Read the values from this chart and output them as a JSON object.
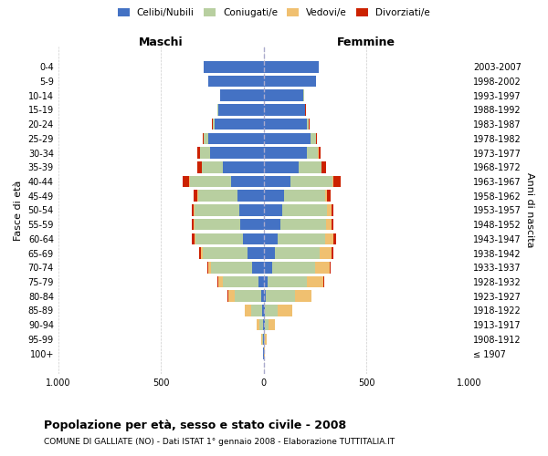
{
  "age_groups": [
    "100+",
    "95-99",
    "90-94",
    "85-89",
    "80-84",
    "75-79",
    "70-74",
    "65-69",
    "60-64",
    "55-59",
    "50-54",
    "45-49",
    "40-44",
    "35-39",
    "30-34",
    "25-29",
    "20-24",
    "15-19",
    "10-14",
    "5-9",
    "0-4"
  ],
  "birth_years": [
    "≤ 1907",
    "1908-1912",
    "1913-1917",
    "1918-1922",
    "1923-1927",
    "1928-1932",
    "1933-1937",
    "1938-1942",
    "1943-1947",
    "1948-1952",
    "1953-1957",
    "1958-1962",
    "1963-1967",
    "1968-1972",
    "1973-1977",
    "1978-1982",
    "1983-1987",
    "1988-1992",
    "1993-1997",
    "1998-2002",
    "2003-2007"
  ],
  "colors": {
    "celibe": "#4472c4",
    "coniugato": "#b8cfa0",
    "vedovo": "#f0c070",
    "divorziato": "#cc2200"
  },
  "males": {
    "celibe": [
      2,
      2,
      4,
      5,
      12,
      25,
      55,
      80,
      100,
      115,
      120,
      125,
      160,
      200,
      260,
      270,
      240,
      220,
      210,
      270,
      290
    ],
    "coniugato": [
      1,
      3,
      15,
      55,
      130,
      175,
      200,
      215,
      230,
      220,
      215,
      195,
      200,
      100,
      50,
      20,
      8,
      3,
      0,
      0,
      0
    ],
    "vedovo": [
      1,
      5,
      15,
      30,
      30,
      20,
      15,
      10,
      8,
      5,
      5,
      4,
      3,
      2,
      1,
      0,
      0,
      0,
      0,
      0,
      0
    ],
    "divorziato": [
      0,
      0,
      0,
      2,
      2,
      5,
      5,
      10,
      10,
      10,
      10,
      15,
      30,
      20,
      10,
      5,
      2,
      1,
      0,
      0,
      0
    ]
  },
  "females": {
    "celibe": [
      2,
      2,
      5,
      8,
      12,
      20,
      40,
      55,
      70,
      80,
      90,
      100,
      130,
      170,
      210,
      230,
      210,
      200,
      195,
      255,
      270
    ],
    "coniugato": [
      1,
      5,
      20,
      60,
      140,
      190,
      210,
      220,
      230,
      225,
      220,
      200,
      205,
      110,
      55,
      25,
      12,
      4,
      1,
      0,
      0
    ],
    "vedovo": [
      3,
      10,
      30,
      70,
      80,
      80,
      70,
      55,
      40,
      25,
      20,
      10,
      5,
      3,
      2,
      1,
      0,
      0,
      0,
      0,
      0
    ],
    "divorziato": [
      0,
      0,
      1,
      2,
      3,
      5,
      8,
      10,
      12,
      12,
      12,
      18,
      35,
      22,
      12,
      5,
      2,
      1,
      0,
      0,
      0
    ]
  },
  "title": "Popolazione per età, sesso e stato civile - 2008",
  "subtitle": "COMUNE DI GALLIATE (NO) - Dati ISTAT 1° gennaio 2008 - Elaborazione TUTTITALIA.IT",
  "xlabel_left": "Maschi",
  "xlabel_right": "Femmine",
  "ylabel_left": "Fasce di età",
  "ylabel_right": "Anni di nascita",
  "xlim": 1000,
  "xticks": [
    -1000,
    -500,
    0,
    500,
    1000
  ],
  "xticklabels": [
    "1.000",
    "500",
    "0",
    "500",
    "1.000"
  ],
  "legend_labels": [
    "Celibi/Nubili",
    "Coniugati/e",
    "Vedovi/e",
    "Divorziati/e"
  ],
  "legend_colors": [
    "#4472c4",
    "#b8cfa0",
    "#f0c070",
    "#cc2200"
  ],
  "background_color": "#ffffff",
  "grid_color": "#cccccc"
}
